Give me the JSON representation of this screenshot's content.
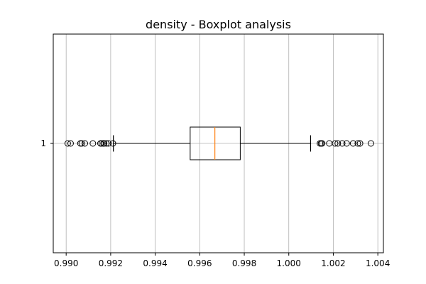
{
  "chart_data": {
    "type": "boxplot",
    "orientation": "horizontal",
    "title": "density - Boxplot analysis",
    "xlabel": "",
    "ylabel": "",
    "xlim": [
      0.98942,
      1.00425
    ],
    "x_ticks": [
      0.99,
      0.992,
      0.994,
      0.996,
      0.998,
      1.0,
      1.002,
      1.004
    ],
    "x_tick_labels": [
      "0.990",
      "0.992",
      "0.994",
      "0.996",
      "0.998",
      "1.000",
      "1.002",
      "1.004"
    ],
    "y_tick_labels": [
      "1"
    ],
    "grid": true,
    "series": [
      {
        "category": "1",
        "whisker_low": 0.99212,
        "q1": 0.99557,
        "median": 0.99668,
        "q3": 0.99782,
        "whisker_high": 1.00098,
        "outliers": [
          0.99007,
          0.9902,
          0.99064,
          0.9907,
          0.99084,
          0.9912,
          0.99154,
          0.9916,
          0.99168,
          0.9917,
          0.9918,
          0.9919,
          0.9921,
          1.0014,
          1.00145,
          1.0015,
          1.00182,
          1.00208,
          1.0022,
          1.0024,
          1.0026,
          1.00289,
          1.0031,
          1.0032,
          1.00369
        ]
      }
    ],
    "colors": {
      "box": "#000000",
      "median": "#ff7f0e",
      "grid": "#b0b0b0",
      "outlier": "#000000"
    }
  }
}
